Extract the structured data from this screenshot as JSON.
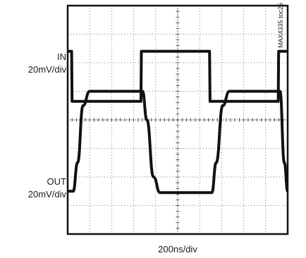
{
  "chart_data": {
    "type": "line",
    "title": "",
    "figure_id": "MAX4335 toc25",
    "x_scale_label": "200ns/div",
    "x_divisions": 10,
    "y_divisions": 8,
    "grid": true,
    "series": [
      {
        "name": "IN",
        "scale_label": "20mV/div",
        "waveform": "square",
        "x_div": [
          0,
          0.18,
          0.2,
          3.33,
          3.35,
          6.45,
          6.47,
          9.57,
          9.59,
          10
        ],
        "y_div": [
          2.4,
          2.4,
          0.65,
          0.65,
          2.4,
          2.4,
          0.65,
          0.65,
          2.4,
          2.4
        ]
      },
      {
        "name": "OUT",
        "scale_label": "20mV/div",
        "waveform": "filtered-square",
        "x_div": [
          0,
          0.25,
          0.45,
          0.7,
          1.0,
          3.4,
          3.6,
          3.9,
          4.2,
          6.55,
          6.75,
          7.05,
          7.35,
          9.65,
          9.85,
          10
        ],
        "y_div": [
          -2.5,
          -2.5,
          -1.5,
          0.5,
          1.0,
          1.0,
          0.0,
          -2.0,
          -2.55,
          -2.55,
          -1.5,
          0.5,
          1.0,
          1.0,
          -1.5,
          -2.5
        ]
      }
    ]
  }
}
